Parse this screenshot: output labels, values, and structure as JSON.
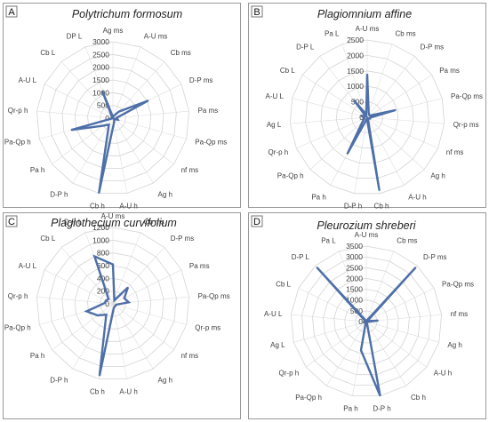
{
  "figure": {
    "line_color": "#4e6fa8",
    "grid_color": "#d4d4d4"
  },
  "chart_data": [
    {
      "panel": "A",
      "type": "radar",
      "title": "Polytrichum formosum",
      "ylim": [
        0,
        3000
      ],
      "ticks": [
        0,
        500,
        1000,
        1500,
        2000,
        2500,
        3000
      ],
      "categories": [
        "Ag ms",
        "A-U ms",
        "Cb ms",
        "D-P ms",
        "Pa ms",
        "Pa-Qp ms",
        "nf ms",
        "Ag h",
        "A-U h",
        "Cb h",
        "D-P h",
        "Pa h",
        "Pa-Qp h",
        "Qr-p h",
        "A-U L",
        "Cb L",
        "DP L"
      ],
      "values": [
        50,
        100,
        350,
        1550,
        150,
        200,
        50,
        100,
        200,
        3000,
        300,
        500,
        1700,
        0,
        50,
        50,
        1150
      ],
      "grid": true,
      "legend": "none"
    },
    {
      "panel": "B",
      "type": "radar",
      "title": "Plagiomnium affine",
      "ylim": [
        0,
        2500
      ],
      "ticks": [
        0,
        500,
        1000,
        1500,
        2000,
        2500
      ],
      "categories": [
        "A-U ms",
        "Cb ms",
        "D-P ms",
        "Pa ms",
        "Pa-Qp ms",
        "Qr-p ms",
        "nf ms",
        "Ag h",
        "A-U h",
        "Cb h",
        "D-P h",
        "Pa h",
        "Pa-Qp h",
        "Qr-p h",
        "Ag L",
        "A-U L",
        "Cb L",
        "D-P L",
        "Pa L"
      ],
      "values": [
        1400,
        150,
        100,
        100,
        950,
        100,
        100,
        50,
        50,
        2400,
        50,
        1350,
        200,
        100,
        100,
        200,
        50,
        700,
        100
      ],
      "grid": true,
      "legend": "none"
    },
    {
      "panel": "C",
      "type": "radar",
      "title": "Plagiothecium curvifolium",
      "ylim": [
        0,
        1200
      ],
      "ticks": [
        0,
        200,
        400,
        600,
        800,
        1000,
        1200
      ],
      "categories": [
        "A-U ms",
        "Cb ms",
        "D-P ms",
        "Pa ms",
        "Pa-Qp ms",
        "Qr-p ms",
        "nf ms",
        "Ag h",
        "A-U h",
        "Cb h",
        "D-P h",
        "Pa h",
        "Pa-Qp h",
        "Qr-p h",
        "A-U L",
        "Cb L",
        "D-P L"
      ],
      "values": [
        620,
        60,
        350,
        200,
        250,
        50,
        50,
        50,
        70,
        1150,
        200,
        300,
        430,
        130,
        120,
        100,
        800
      ],
      "grid": true,
      "legend": "none"
    },
    {
      "panel": "D",
      "type": "radar",
      "title": "Pleurozium shreberi",
      "ylim": [
        0,
        3500
      ],
      "ticks": [
        0,
        500,
        1000,
        1500,
        2000,
        2500,
        3000,
        3500
      ],
      "categories": [
        "A-U ms",
        "Cb ms",
        "D-P ms",
        "Pa-Qp ms",
        "nf ms",
        "Ag h",
        "A-U h",
        "Cb h",
        "D-P h",
        "Pa h",
        "Pa-Qp h",
        "Qr-p h",
        "Ag L",
        "A-U L",
        "Cb L",
        "D-P L",
        "Pa L"
      ],
      "values": [
        50,
        50,
        3400,
        50,
        550,
        50,
        50,
        50,
        3500,
        1350,
        50,
        50,
        150,
        50,
        50,
        3400,
        50
      ],
      "grid": true,
      "legend": "none"
    }
  ]
}
